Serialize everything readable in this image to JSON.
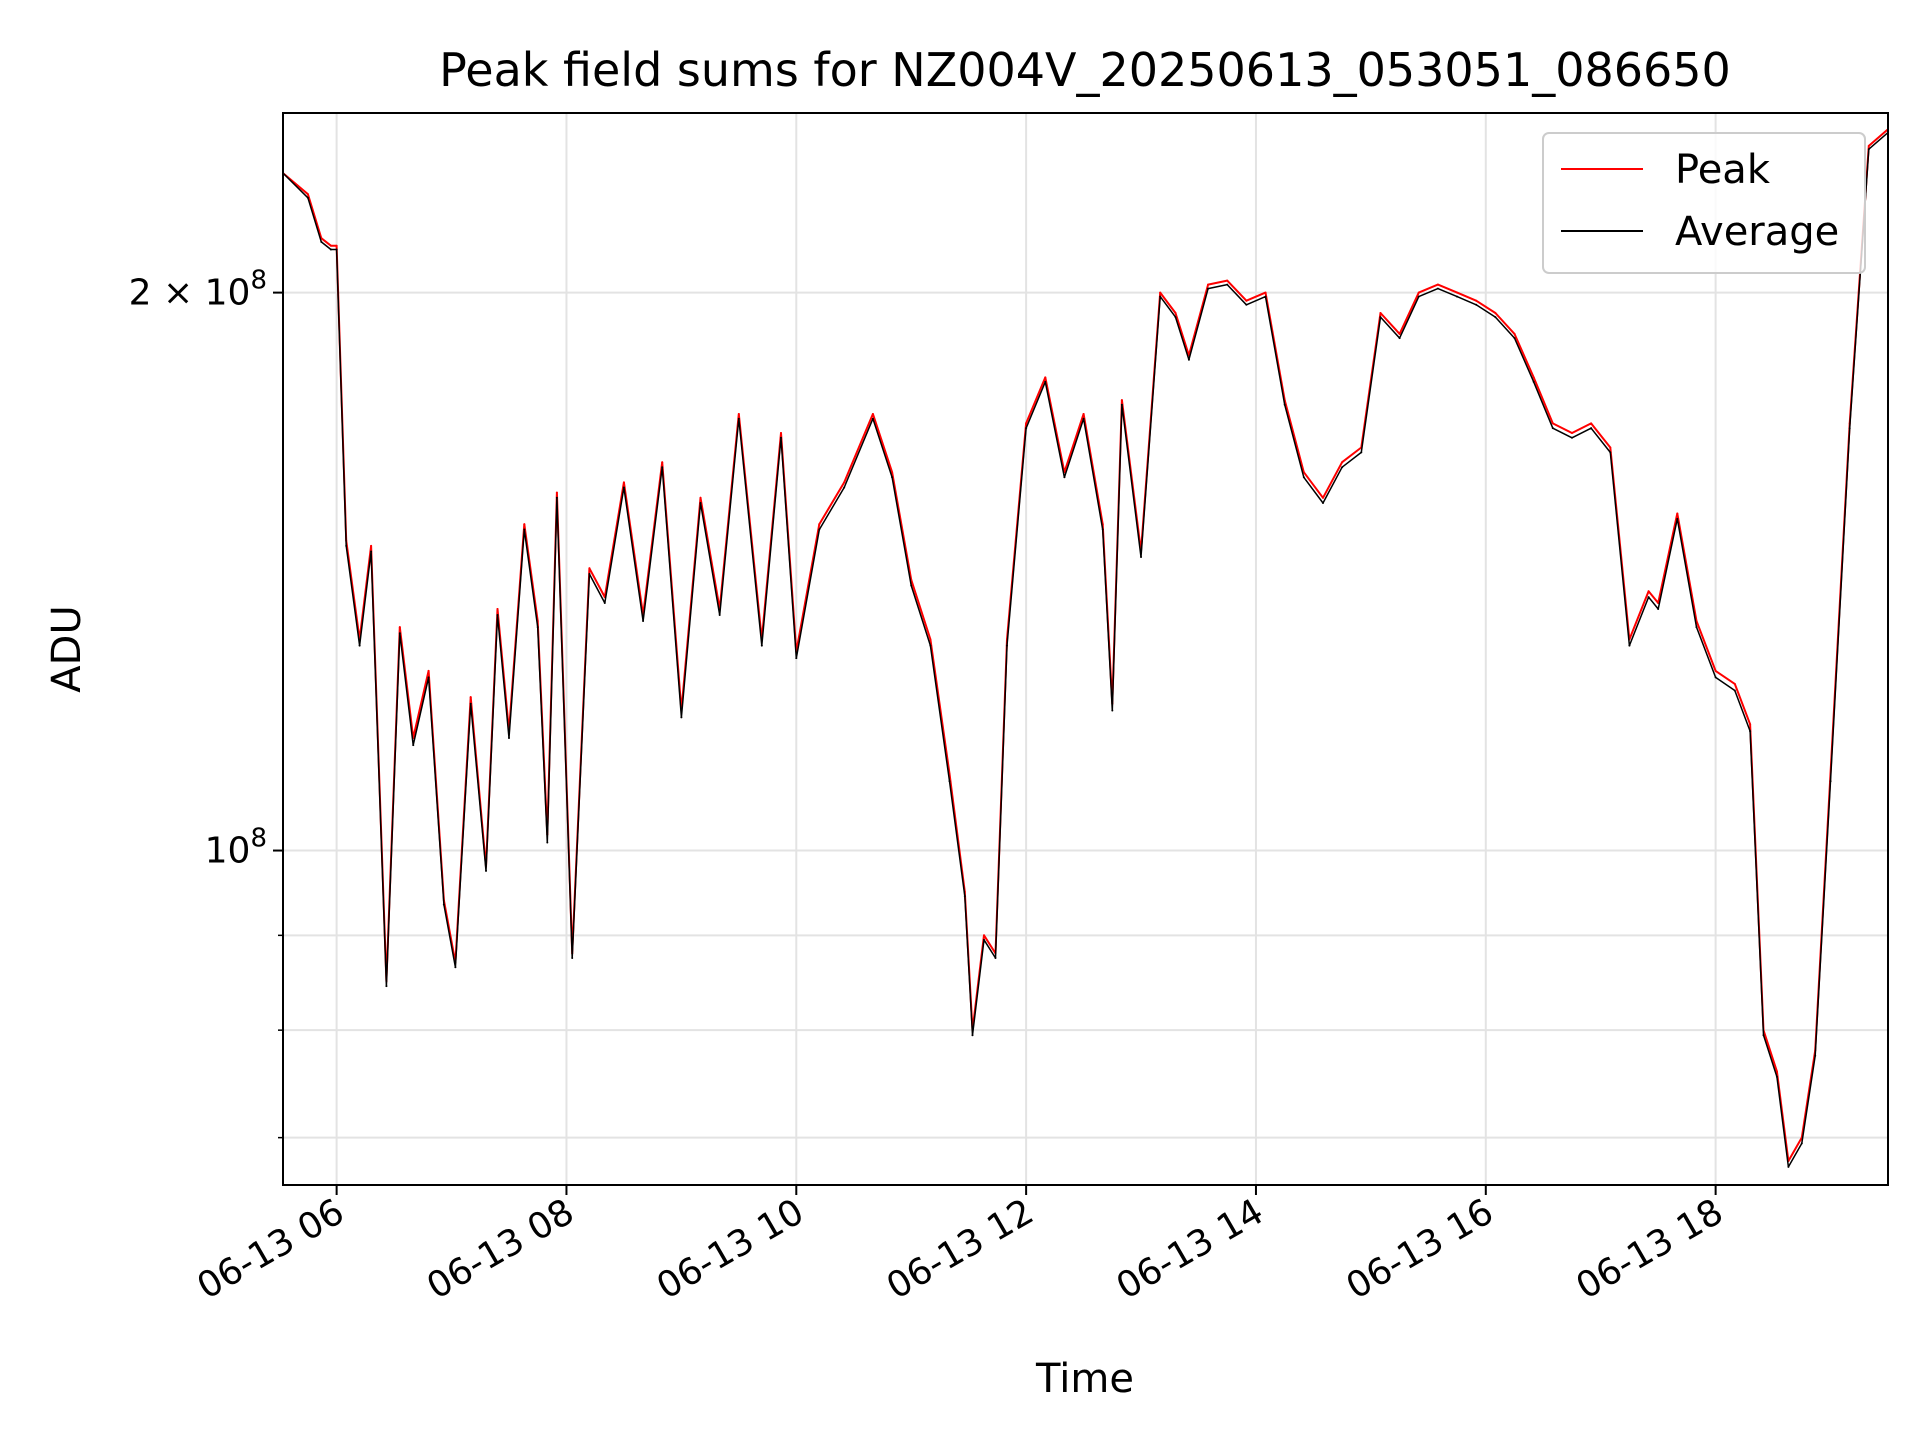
{
  "chart_data": {
    "type": "line",
    "title": "Peak field sums for NZ004V_20250613_053051_086650",
    "xlabel": "Time",
    "ylabel": "ADU",
    "y_scale": "log",
    "ylim": [
      66000000,
      250000000
    ],
    "xlim": [
      "06-13 05:32",
      "06-13 19:30"
    ],
    "x_ticks": [
      "06-13 06",
      "06-13 08",
      "06-13 10",
      "06-13 12",
      "06-13 14",
      "06-13 16",
      "06-13 18"
    ],
    "y_ticks": [
      {
        "value": 100000000,
        "mantissa": "",
        "base": "10",
        "exp": "8"
      },
      {
        "value": 200000000,
        "mantissa": "2 × ",
        "base": "10",
        "exp": "8"
      }
    ],
    "grid": true,
    "legend_position": "top-right",
    "x": [
      "06-13 05:32",
      "06-13 05:45",
      "06-13 05:52",
      "06-13 05:57",
      "06-13 06:00",
      "06-13 06:05",
      "06-13 06:12",
      "06-13 06:18",
      "06-13 06:26",
      "06-13 06:33",
      "06-13 06:40",
      "06-13 06:48",
      "06-13 06:56",
      "06-13 07:02",
      "06-13 07:10",
      "06-13 07:18",
      "06-13 07:24",
      "06-13 07:30",
      "06-13 07:38",
      "06-13 07:45",
      "06-13 07:50",
      "06-13 07:55",
      "06-13 08:03",
      "06-13 08:12",
      "06-13 08:20",
      "06-13 08:30",
      "06-13 08:40",
      "06-13 08:50",
      "06-13 09:00",
      "06-13 09:10",
      "06-13 09:20",
      "06-13 09:30",
      "06-13 09:42",
      "06-13 09:52",
      "06-13 10:00",
      "06-13 10:12",
      "06-13 10:25",
      "06-13 10:40",
      "06-13 10:50",
      "06-13 11:00",
      "06-13 11:10",
      "06-13 11:20",
      "06-13 11:28",
      "06-13 11:32",
      "06-13 11:38",
      "06-13 11:44",
      "06-13 11:50",
      "06-13 12:00",
      "06-13 12:10",
      "06-13 12:20",
      "06-13 12:30",
      "06-13 12:40",
      "06-13 12:45",
      "06-13 12:50",
      "06-13 13:00",
      "06-13 13:10",
      "06-13 13:18",
      "06-13 13:25",
      "06-13 13:35",
      "06-13 13:45",
      "06-13 13:55",
      "06-13 14:05",
      "06-13 14:15",
      "06-13 14:25",
      "06-13 14:35",
      "06-13 14:45",
      "06-13 14:55",
      "06-13 15:05",
      "06-13 15:15",
      "06-13 15:25",
      "06-13 15:35",
      "06-13 15:45",
      "06-13 15:55",
      "06-13 16:05",
      "06-13 16:15",
      "06-13 16:25",
      "06-13 16:35",
      "06-13 16:45",
      "06-13 16:55",
      "06-13 17:05",
      "06-13 17:15",
      "06-13 17:25",
      "06-13 17:30",
      "06-13 17:40",
      "06-13 17:50",
      "06-13 18:00",
      "06-13 18:10",
      "06-13 18:18",
      "06-13 18:25",
      "06-13 18:32",
      "06-13 18:38",
      "06-13 18:45",
      "06-13 18:52",
      "06-13 19:00",
      "06-13 19:10",
      "06-13 19:20",
      "06-13 19:30"
    ],
    "series": [
      {
        "name": "Peak",
        "color": "#ff0000",
        "values": [
          232000000,
          226000000,
          214000000,
          212000000,
          212000000,
          147000000,
          130000000,
          146000000,
          85000000,
          132000000,
          115000000,
          125000000,
          94000000,
          87000000,
          121000000,
          98000000,
          135000000,
          116000000,
          150000000,
          133000000,
          102000000,
          156000000,
          88000000,
          142000000,
          137000000,
          158000000,
          134000000,
          162000000,
          119000000,
          155000000,
          135000000,
          172000000,
          130000000,
          168000000,
          128000000,
          150000000,
          158000000,
          172000000,
          160000000,
          140000000,
          130000000,
          110000000,
          95000000,
          80000000,
          90000000,
          88000000,
          130000000,
          170000000,
          180000000,
          160000000,
          172000000,
          150000000,
          120000000,
          175000000,
          145000000,
          200000000,
          195000000,
          185000000,
          202000000,
          203000000,
          198000000,
          200000000,
          175000000,
          160000000,
          155000000,
          162000000,
          165000000,
          195000000,
          190000000,
          200000000,
          202000000,
          200000000,
          198000000,
          195000000,
          190000000,
          180000000,
          170000000,
          168000000,
          170000000,
          165000000,
          130000000,
          138000000,
          136000000,
          152000000,
          133000000,
          125000000,
          123000000,
          117000000,
          80000000,
          76000000,
          68000000,
          70000000,
          78000000,
          110000000,
          170000000,
          240000000,
          245000000
        ]
      },
      {
        "name": "Average",
        "color": "#000000",
        "values": [
          232000000,
          225000000,
          213000000,
          211000000,
          211000000,
          146000000,
          129000000,
          145000000,
          84500000,
          131000000,
          114000000,
          124000000,
          93500000,
          86500000,
          120000000,
          97500000,
          134000000,
          115000000,
          149000000,
          132000000,
          101000000,
          155000000,
          87500000,
          141000000,
          136000000,
          157000000,
          133000000,
          161000000,
          118000000,
          154000000,
          134000000,
          171000000,
          129000000,
          167000000,
          127000000,
          149000000,
          157000000,
          171000000,
          159000000,
          139000000,
          129000000,
          109000000,
          94500000,
          79500000,
          89500000,
          87500000,
          129000000,
          169000000,
          179000000,
          159000000,
          171000000,
          149000000,
          119000000,
          174000000,
          144000000,
          199000000,
          194000000,
          184000000,
          201000000,
          202000000,
          197000000,
          199000000,
          174000000,
          159000000,
          154000000,
          161000000,
          164000000,
          194000000,
          189000000,
          199000000,
          201000000,
          199000000,
          197000000,
          194000000,
          189000000,
          179000000,
          169000000,
          167000000,
          169000000,
          164000000,
          129000000,
          137000000,
          135000000,
          151000000,
          132000000,
          124000000,
          122000000,
          116000000,
          79500000,
          75500000,
          67500000,
          69500000,
          77500000,
          109000000,
          169000000,
          239000000,
          244000000
        ]
      }
    ]
  }
}
